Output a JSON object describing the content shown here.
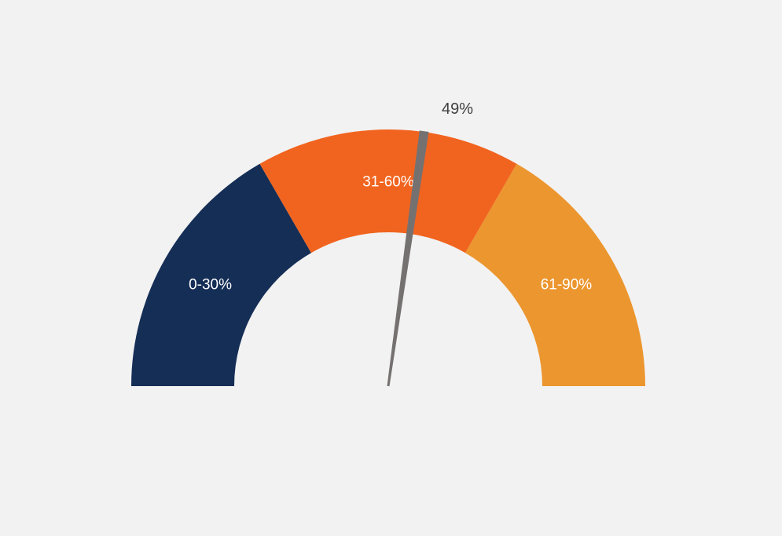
{
  "chart_data": {
    "type": "gauge",
    "title": "",
    "value": 49,
    "value_label": "49%",
    "range": [
      0,
      90
    ],
    "segments": [
      {
        "label": "0-30%",
        "from": 0,
        "to": 30,
        "color": "#152e56"
      },
      {
        "label": "31-60%",
        "from": 30,
        "to": 60,
        "color": "#f1641f"
      },
      {
        "label": "61-90%",
        "from": 60,
        "to": 90,
        "color": "#ec962f"
      }
    ],
    "needle_color": "#767171",
    "background": "#f2f2f2"
  }
}
